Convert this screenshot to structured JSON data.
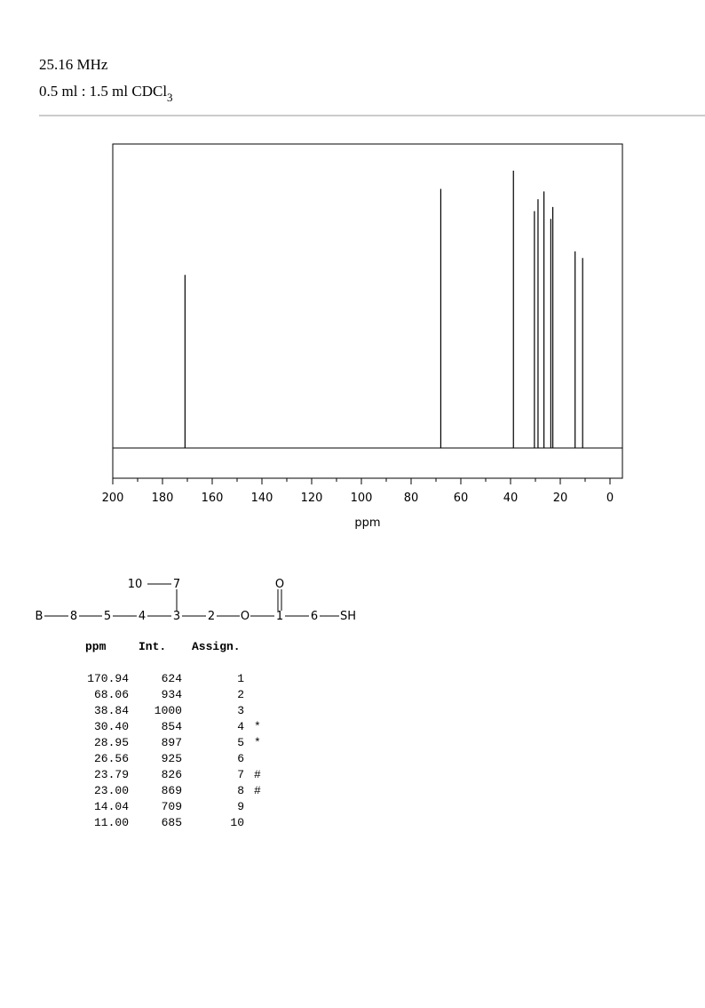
{
  "header": {
    "frequency": "25.16 MHz",
    "solvent": {
      "text": "0.5 ml : 1.5 ml CDCl",
      "sub": "3"
    }
  },
  "chart_data": {
    "type": "spectrum",
    "xlabel": "ppm",
    "color": "#000000",
    "x": [
      170.94,
      68.06,
      38.84,
      30.4,
      28.95,
      26.56,
      23.79,
      23.0,
      14.04,
      11.0
    ],
    "values": [
      624,
      934,
      1000,
      854,
      897,
      925,
      826,
      869,
      709,
      685
    ],
    "xlim": [
      200,
      -5
    ],
    "xticks": [
      200,
      180,
      160,
      140,
      120,
      100,
      80,
      60,
      40,
      20,
      0
    ],
    "xticks_minor": [
      190,
      170,
      150,
      130,
      110,
      90,
      70,
      50,
      30,
      10
    ],
    "ylim": [
      -109,
      1096
    ]
  },
  "structure": {
    "nodes": [
      "B",
      "8",
      "5",
      "4",
      "3",
      "2",
      "O",
      "1",
      "6",
      "SH",
      "10",
      "7",
      "O"
    ]
  },
  "table": {
    "columns": [
      "ppm",
      "Int.",
      "Assign."
    ],
    "rows": [
      [
        "170.94",
        "624",
        "1",
        null
      ],
      [
        "68.06",
        "934",
        "2",
        null
      ],
      [
        "38.84",
        "1000",
        "3",
        null
      ],
      [
        "30.40",
        "854",
        "4",
        "*"
      ],
      [
        "28.95",
        "897",
        "5",
        "*"
      ],
      [
        "26.56",
        "925",
        "6",
        null
      ],
      [
        "23.79",
        "826",
        "7",
        "#"
      ],
      [
        "23.00",
        "869",
        "8",
        "#"
      ],
      [
        "14.04",
        "709",
        "9",
        null
      ],
      [
        "11.00",
        "685",
        "10",
        null
      ]
    ]
  }
}
